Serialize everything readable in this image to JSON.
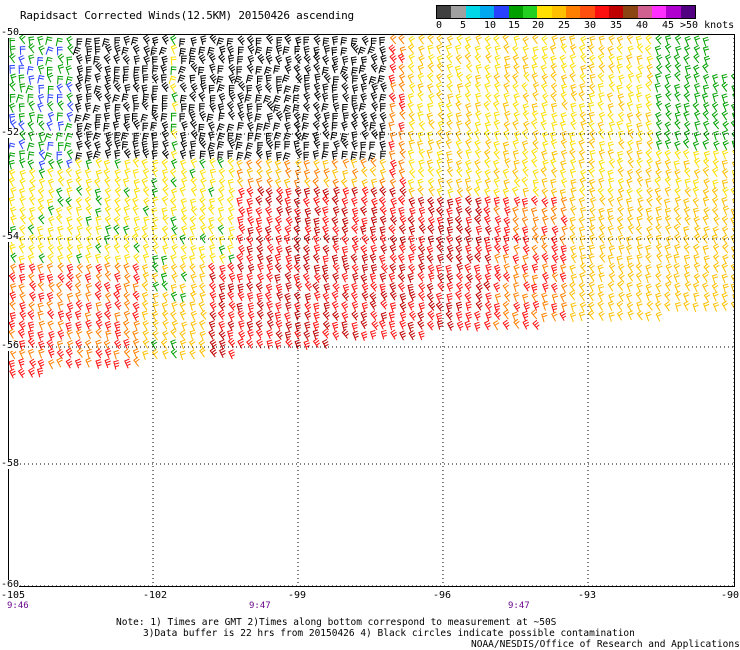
{
  "title": "Rapidsact Corrected Winds(12.5KM) 20150426 ascending",
  "legend": {
    "swatches": [
      {
        "color": "#404040"
      },
      {
        "color": "#a0a0a0"
      },
      {
        "color": "#00d8e8"
      },
      {
        "color": "#00a8f0"
      },
      {
        "color": "#2a40ff"
      },
      {
        "color": "#00a000"
      },
      {
        "color": "#22d022"
      },
      {
        "color": "#ffe000"
      },
      {
        "color": "#ffc000"
      },
      {
        "color": "#ff8000"
      },
      {
        "color": "#ff5010"
      },
      {
        "color": "#ff1010"
      },
      {
        "color": "#c00000"
      },
      {
        "color": "#8b4513"
      },
      {
        "color": "#d06090"
      },
      {
        "color": "#ff30ff"
      },
      {
        "color": "#b000d0"
      },
      {
        "color": "#500080"
      }
    ],
    "labels": [
      "0",
      "5",
      "10",
      "15",
      "20",
      "25",
      "30",
      "35",
      "40",
      "45",
      ">50 knots"
    ]
  },
  "map": {
    "lat_labels": [
      "-50",
      "-52",
      "-54",
      "-56",
      "-58",
      "-60"
    ],
    "lon_labels": [
      "-105",
      "-102",
      "-99",
      "-96",
      "-93",
      "-90"
    ],
    "times": [
      "9:46",
      "9:47",
      "9:47"
    ]
  },
  "wind_colors": {
    "black": "#000000",
    "blue": "#2a40ff",
    "green": "#00a000",
    "yellow": "#ffe000",
    "gold": "#ffc000",
    "orange": "#ff8000",
    "red": "#ff1010",
    "crimson": "#c00000"
  },
  "notes": [
    "Note: 1) Times are GMT 2)Times along bottom correspond to measurement at ~50S",
    "3)Data buffer is 22 hrs from 20150426 4) Black circles indicate possible contamination",
    "NOAA/NESDIS/Office of Research and Applications"
  ]
}
